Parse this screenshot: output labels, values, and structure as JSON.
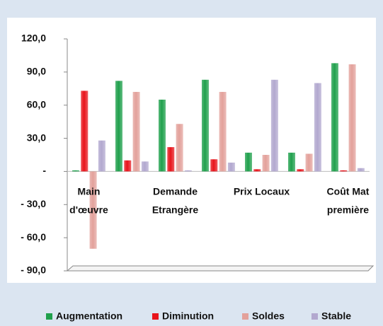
{
  "chart_data": {
    "type": "bar",
    "categories": [
      [
        "Main",
        "d'œuvre"
      ],
      null,
      [
        "Demande",
        "Etrangère"
      ],
      null,
      [
        "Prix Locaux"
      ],
      null,
      [
        "Coût Mat",
        "première"
      ]
    ],
    "series": [
      {
        "name": "Augmentation",
        "color": "#1fa04c",
        "values": [
          1,
          82,
          65,
          83,
          17,
          17,
          98
        ]
      },
      {
        "name": "Diminution",
        "color": "#e8141b",
        "values": [
          73,
          10,
          22,
          11,
          2,
          2,
          1
        ]
      },
      {
        "name": "Soldes",
        "color": "#e3a19b",
        "values": [
          -70,
          72,
          43,
          72,
          15,
          16,
          97
        ]
      },
      {
        "name": "Stable",
        "color": "#b2a8cf",
        "values": [
          28,
          9,
          1,
          8,
          83,
          80,
          3
        ]
      }
    ],
    "ylim": [
      -90,
      120
    ],
    "yticks": [
      {
        "value": -90,
        "label": "- 90,0"
      },
      {
        "value": -60,
        "label": "- 60,0"
      },
      {
        "value": -30,
        "label": "- 30,0"
      },
      {
        "value": 0,
        "label": "-"
      },
      {
        "value": 30,
        "label": "30,0"
      },
      {
        "value": 60,
        "label": "60,0"
      },
      {
        "value": 90,
        "label": "90,0"
      },
      {
        "value": 120,
        "label": "120,0"
      }
    ],
    "legend": "bottom"
  }
}
